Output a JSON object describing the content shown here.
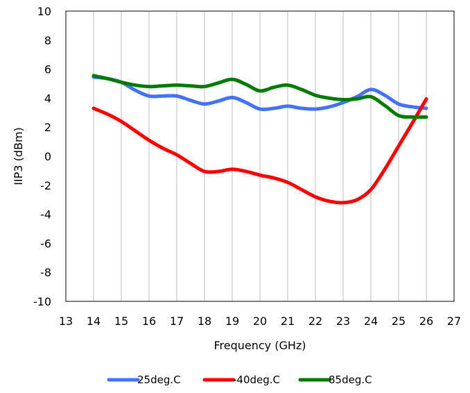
{
  "chart_data": {
    "type": "line",
    "title": "",
    "xlabel": "Frequency (GHz)",
    "ylabel": "IIP3 (dBm)",
    "xlim": [
      13,
      27
    ],
    "ylim": [
      -10,
      10
    ],
    "x_ticks": [
      13,
      14,
      15,
      16,
      17,
      18,
      19,
      20,
      21,
      22,
      23,
      24,
      25,
      26,
      27
    ],
    "y_ticks": [
      -10,
      -8,
      -6,
      -4,
      -2,
      0,
      2,
      4,
      6,
      8,
      10
    ],
    "grid": "vertical",
    "legend_position": "bottom",
    "series": [
      {
        "name": "25deg.C",
        "color": "#4472ff",
        "x": [
          14,
          14.5,
          15,
          15.5,
          16,
          16.5,
          17,
          17.5,
          18,
          18.5,
          19,
          19.5,
          20,
          20.5,
          21,
          21.5,
          22,
          22.5,
          23,
          23.5,
          24,
          24.5,
          25,
          25.5,
          26
        ],
        "y": [
          5.45,
          5.35,
          5.1,
          4.55,
          4.15,
          4.15,
          4.15,
          3.85,
          3.6,
          3.8,
          4.05,
          3.7,
          3.25,
          3.3,
          3.45,
          3.3,
          3.25,
          3.4,
          3.7,
          4.1,
          4.6,
          4.2,
          3.6,
          3.4,
          3.3
        ]
      },
      {
        "name": "-40deg.C",
        "color": "#ff0000",
        "x": [
          14,
          14.5,
          15,
          15.5,
          16,
          16.5,
          17,
          17.5,
          18,
          18.5,
          19,
          19.5,
          20,
          20.5,
          21,
          21.5,
          22,
          22.5,
          23,
          23.5,
          24,
          24.5,
          25,
          25.5,
          26
        ],
        "y": [
          3.3,
          2.9,
          2.4,
          1.75,
          1.1,
          0.55,
          0.1,
          -0.5,
          -1.05,
          -1.05,
          -0.9,
          -1.05,
          -1.3,
          -1.5,
          -1.8,
          -2.3,
          -2.8,
          -3.1,
          -3.2,
          -3.0,
          -2.3,
          -0.9,
          0.7,
          2.3,
          3.95
        ]
      },
      {
        "name": "85deg.C",
        "color": "#007a00",
        "x": [
          14,
          14.5,
          15,
          15.5,
          16,
          16.5,
          17,
          17.5,
          18,
          18.5,
          19,
          19.5,
          20,
          20.5,
          21,
          21.5,
          22,
          22.5,
          23,
          23.5,
          24,
          24.5,
          25,
          25.5,
          26
        ],
        "y": [
          5.55,
          5.35,
          5.1,
          4.9,
          4.8,
          4.85,
          4.9,
          4.85,
          4.8,
          5.05,
          5.3,
          4.95,
          4.5,
          4.75,
          4.9,
          4.6,
          4.2,
          4.0,
          3.9,
          3.95,
          4.1,
          3.5,
          2.8,
          2.7,
          2.7
        ]
      }
    ]
  }
}
